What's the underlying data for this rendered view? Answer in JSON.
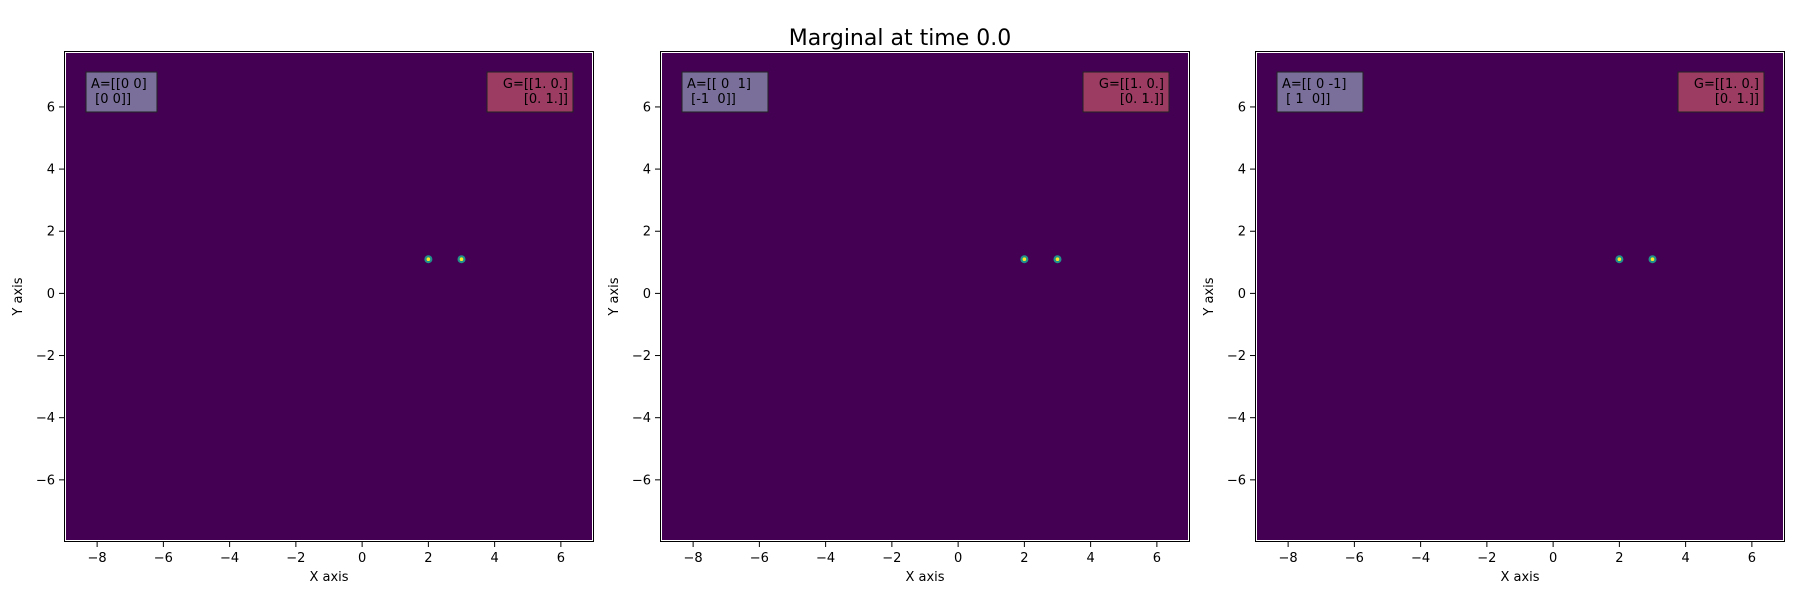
{
  "figure": {
    "suptitle": "Marginal at time 0.0",
    "colors": {
      "background": "#440154",
      "frame": "#ffffff",
      "point_outer": "#21918c",
      "point_inner": "#fde725",
      "box_A": "#7a6f9b",
      "box_G": "#9c3c62"
    }
  },
  "chart_data": [
    {
      "type": "heatmap",
      "title": "",
      "xlabel": "X axis",
      "ylabel": "Y axis",
      "xlim": [
        -9,
        7
      ],
      "ylim": [
        -8,
        7.8
      ],
      "xticks": [
        -8,
        -6,
        -4,
        -2,
        0,
        2,
        4,
        6
      ],
      "yticks": [
        -6,
        -4,
        -2,
        0,
        2,
        4,
        6
      ],
      "xtick_labels": [
        "−8",
        "−6",
        "−4",
        "−2",
        "0",
        "2",
        "4",
        "6"
      ],
      "ytick_labels": [
        "−6",
        "−4",
        "−2",
        "0",
        "2",
        "4",
        "6"
      ],
      "grid": false,
      "points": [
        {
          "x": 2.0,
          "y": 1.1
        },
        {
          "x": 3.0,
          "y": 1.1
        }
      ],
      "annotations": [
        {
          "id": "A",
          "position": "top-left",
          "lines": [
            "A=[[0 0]",
            " [0 0]]"
          ]
        },
        {
          "id": "G",
          "position": "top-right",
          "lines": [
            "G=[[1. 0.]",
            " [0. 1.]]"
          ]
        }
      ]
    },
    {
      "type": "heatmap",
      "title": "",
      "xlabel": "X axis",
      "ylabel": "Y axis",
      "xlim": [
        -9,
        7
      ],
      "ylim": [
        -8,
        7.8
      ],
      "xticks": [
        -8,
        -6,
        -4,
        -2,
        0,
        2,
        4,
        6
      ],
      "yticks": [
        -6,
        -4,
        -2,
        0,
        2,
        4,
        6
      ],
      "xtick_labels": [
        "−8",
        "−6",
        "−4",
        "−2",
        "0",
        "2",
        "4",
        "6"
      ],
      "ytick_labels": [
        "−6",
        "−4",
        "−2",
        "0",
        "2",
        "4",
        "6"
      ],
      "grid": false,
      "points": [
        {
          "x": 2.0,
          "y": 1.1
        },
        {
          "x": 3.0,
          "y": 1.1
        }
      ],
      "annotations": [
        {
          "id": "A",
          "position": "top-left",
          "lines": [
            "A=[[ 0  1]",
            " [-1  0]]"
          ]
        },
        {
          "id": "G",
          "position": "top-right",
          "lines": [
            "G=[[1. 0.]",
            " [0. 1.]]"
          ]
        }
      ]
    },
    {
      "type": "heatmap",
      "title": "",
      "xlabel": "X axis",
      "ylabel": "Y axis",
      "xlim": [
        -9,
        7
      ],
      "ylim": [
        -8,
        7.8
      ],
      "xticks": [
        -8,
        -6,
        -4,
        -2,
        0,
        2,
        4,
        6
      ],
      "yticks": [
        -6,
        -4,
        -2,
        0,
        2,
        4,
        6
      ],
      "xtick_labels": [
        "−8",
        "−6",
        "−4",
        "−2",
        "0",
        "2",
        "4",
        "6"
      ],
      "ytick_labels": [
        "−6",
        "−4",
        "−2",
        "0",
        "2",
        "4",
        "6"
      ],
      "grid": false,
      "points": [
        {
          "x": 2.0,
          "y": 1.1
        },
        {
          "x": 3.0,
          "y": 1.1
        }
      ],
      "annotations": [
        {
          "id": "A",
          "position": "top-left",
          "lines": [
            "A=[[ 0 -1]",
            " [ 1  0]]"
          ]
        },
        {
          "id": "G",
          "position": "top-right",
          "lines": [
            "G=[[1. 0.]",
            " [0. 1.]]"
          ]
        }
      ]
    }
  ]
}
